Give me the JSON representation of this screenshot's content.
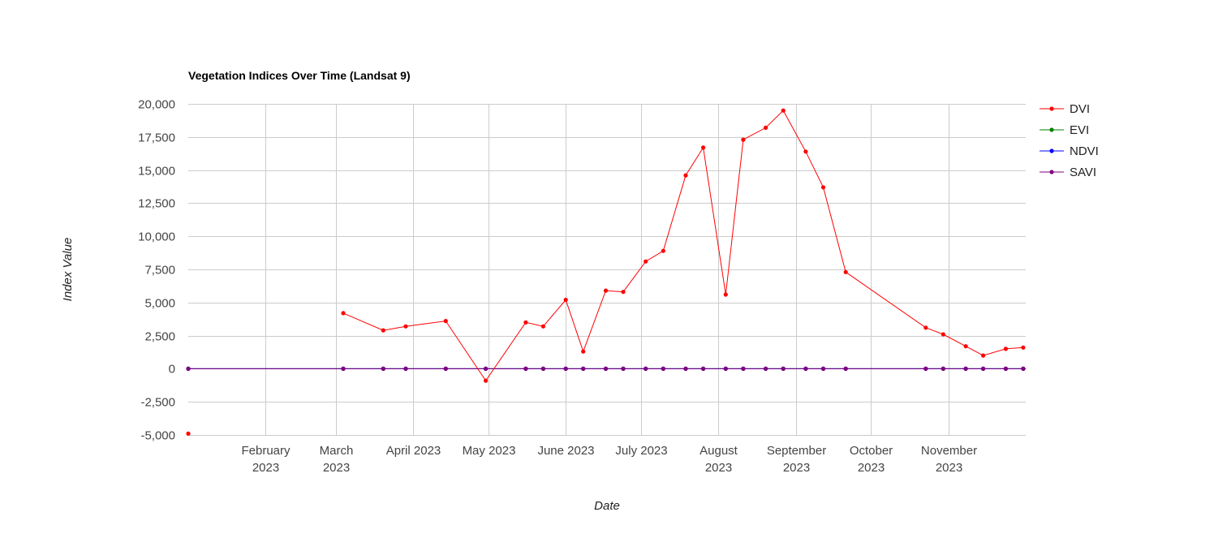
{
  "chart_data": {
    "type": "line",
    "title": "Vegetation Indices Over Time (Landsat 9)",
    "xlabel": "Date",
    "ylabel": "Index Value",
    "ylim": [
      -5000,
      20000
    ],
    "xlim": [
      "2023-01-01",
      "2023-12-02"
    ],
    "y_ticks": [
      "20,000",
      "17,500",
      "15,000",
      "12,500",
      "10,000",
      "7,500",
      "5,000",
      "2,500",
      "0",
      "-2,500",
      "-5,000"
    ],
    "y_tick_values": [
      20000,
      17500,
      15000,
      12500,
      10000,
      7500,
      5000,
      2500,
      0,
      -2500,
      -5000
    ],
    "x_ticks": [
      {
        "date": "2023-02-01",
        "line1": "February",
        "line2": "2023"
      },
      {
        "date": "2023-03-01",
        "line1": "March",
        "line2": "2023"
      },
      {
        "date": "2023-04-01",
        "line1": "April 2023",
        "line2": ""
      },
      {
        "date": "2023-05-01",
        "line1": "May 2023",
        "line2": ""
      },
      {
        "date": "2023-06-01",
        "line1": "June 2023",
        "line2": ""
      },
      {
        "date": "2023-07-01",
        "line1": "July 2023",
        "line2": ""
      },
      {
        "date": "2023-08-01",
        "line1": "August",
        "line2": "2023"
      },
      {
        "date": "2023-09-01",
        "line1": "September",
        "line2": "2023"
      },
      {
        "date": "2023-10-01",
        "line1": "October",
        "line2": "2023"
      },
      {
        "date": "2023-11-01",
        "line1": "November",
        "line2": "2023"
      }
    ],
    "grid": true,
    "legend_position": "right",
    "x": [
      "2023-01-01",
      "2023-03-04",
      "2023-03-20",
      "2023-03-29",
      "2023-04-14",
      "2023-04-30",
      "2023-05-16",
      "2023-05-23",
      "2023-06-01",
      "2023-06-08",
      "2023-06-17",
      "2023-06-24",
      "2023-07-03",
      "2023-07-10",
      "2023-07-19",
      "2023-07-26",
      "2023-08-04",
      "2023-08-11",
      "2023-08-20",
      "2023-08-27",
      "2023-09-05",
      "2023-09-12",
      "2023-09-21",
      "2023-10-23",
      "2023-10-30",
      "2023-11-08",
      "2023-11-15",
      "2023-11-24",
      "2023-12-01"
    ],
    "series": [
      {
        "name": "DVI",
        "color": "#ff0000",
        "values": [
          -4900,
          4200,
          2900,
          3200,
          3600,
          -900,
          3500,
          3200,
          5200,
          1300,
          5900,
          5800,
          8100,
          8900,
          14600,
          16700,
          5600,
          17300,
          18200,
          19500,
          16400,
          13700,
          7300,
          3100,
          2600,
          1700,
          1000,
          1500,
          1600
        ]
      },
      {
        "name": "EVI",
        "color": "#008000",
        "values": [
          0,
          0.4,
          0.3,
          0.3,
          0.4,
          0.1,
          0.4,
          0.4,
          0.5,
          0.2,
          0.6,
          0.6,
          0.7,
          0.7,
          0.9,
          1.0,
          0.5,
          1.0,
          1.1,
          1.2,
          1.0,
          0.9,
          0.6,
          0.3,
          0.3,
          0.2,
          0.2,
          0.2,
          0.2
        ]
      },
      {
        "name": "NDVI",
        "color": "#0000ff",
        "values": [
          0,
          0.2,
          0.2,
          0.2,
          0.2,
          0.1,
          0.3,
          0.3,
          0.4,
          0.2,
          0.4,
          0.4,
          0.5,
          0.5,
          0.6,
          0.7,
          0.4,
          0.7,
          0.7,
          0.8,
          0.7,
          0.6,
          0.4,
          0.2,
          0.2,
          0.2,
          0.1,
          0.2,
          0.2
        ]
      },
      {
        "name": "SAVI",
        "color": "#800080",
        "values": [
          0,
          0.3,
          0.2,
          0.2,
          0.3,
          0.1,
          0.3,
          0.3,
          0.4,
          0.2,
          0.5,
          0.5,
          0.6,
          0.6,
          0.8,
          0.9,
          0.4,
          0.9,
          1.0,
          1.0,
          0.9,
          0.8,
          0.5,
          0.3,
          0.2,
          0.2,
          0.1,
          0.2,
          0.2
        ]
      }
    ]
  }
}
